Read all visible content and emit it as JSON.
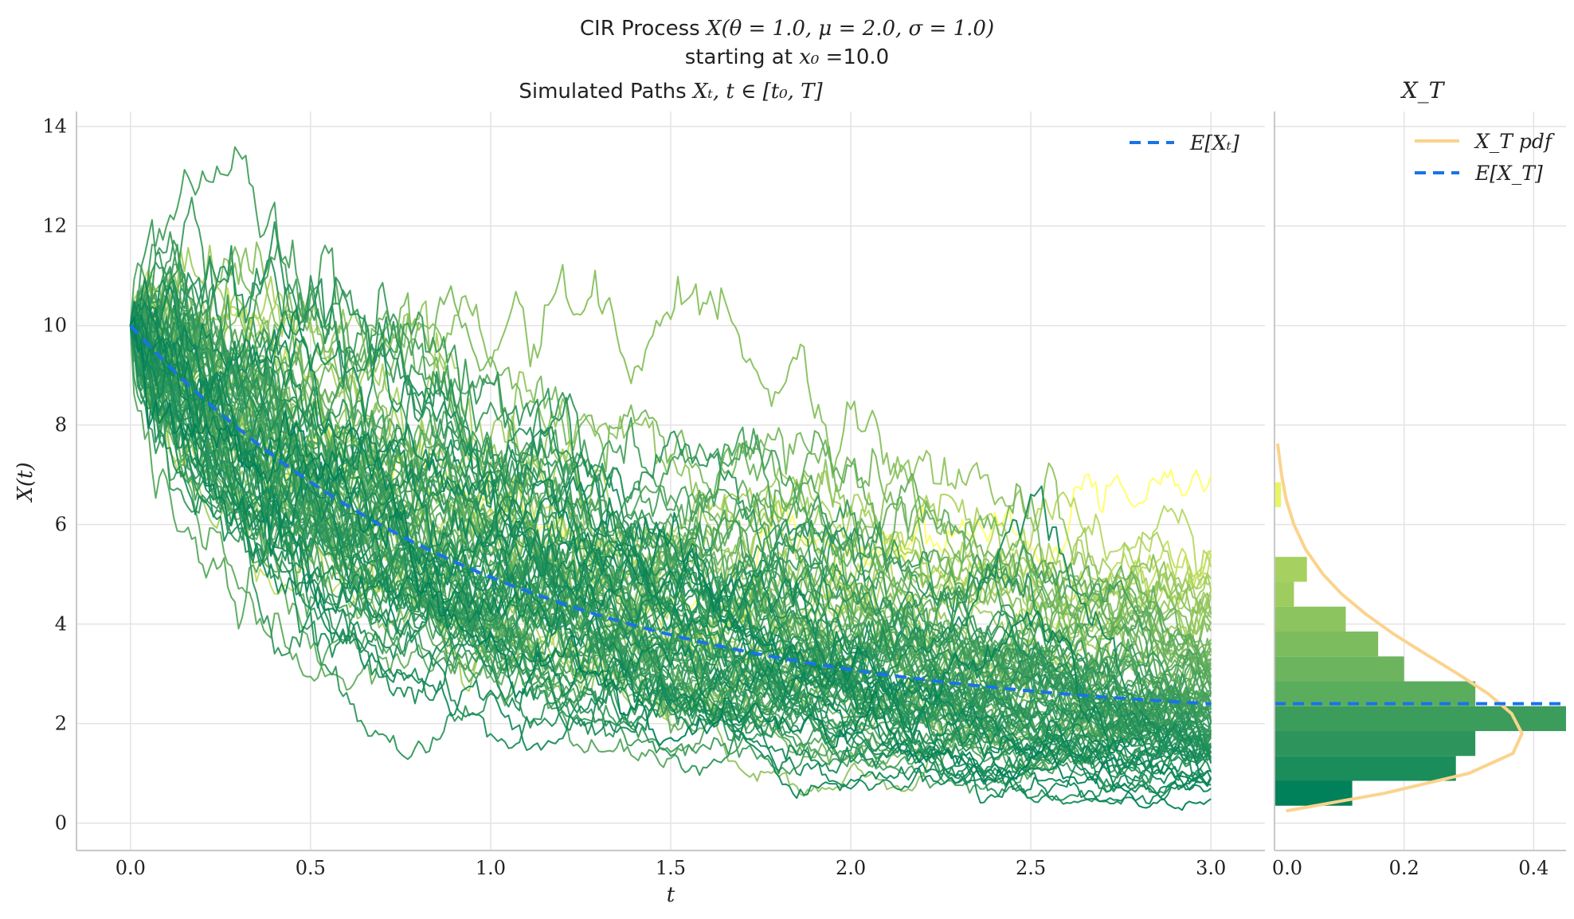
{
  "title": {
    "line1_prefix": "CIR Process ",
    "line1_math": "X(θ = 1.0, μ = 2.0, σ = 1.0)",
    "line2_prefix": "starting at ",
    "line2_math": "x₀ =",
    "line2_value": "10.0"
  },
  "chart_data": [
    {
      "type": "line",
      "panel": "paths",
      "title_prefix": "Simulated Paths ",
      "title_math": "Xₜ, t ∈ [t₀, T]",
      "xlabel": "t",
      "ylabel": "X(t)",
      "xlim": [
        -0.15,
        3.15
      ],
      "ylim": [
        -0.55,
        14.3
      ],
      "xticks": [
        0.0,
        0.5,
        1.0,
        1.5,
        2.0,
        2.5,
        3.0
      ],
      "xtick_labels": [
        "0.0",
        "0.5",
        "1.0",
        "1.5",
        "2.0",
        "2.5",
        "3.0"
      ],
      "yticks": [
        0,
        2,
        4,
        6,
        8,
        10,
        12,
        14
      ],
      "ytick_labels": [
        "0",
        "2",
        "4",
        "6",
        "8",
        "10",
        "12",
        "14"
      ],
      "grid": true,
      "legend_position": "upper right",
      "legend_label": "E[Xₜ]",
      "parameters": {
        "theta": 1.0,
        "mu": 2.0,
        "sigma": 1.0,
        "x0": 10.0,
        "T": 3.0
      },
      "n_paths": 100,
      "expectation": {
        "name": "E[Xₜ]",
        "color": "#1a73e8",
        "x": [
          0,
          0.25,
          0.5,
          0.75,
          1.0,
          1.25,
          1.5,
          1.75,
          2.0,
          2.25,
          2.5,
          2.75,
          3.0
        ],
        "y": [
          10.0,
          8.23,
          6.85,
          5.78,
          4.94,
          4.29,
          3.79,
          3.39,
          3.08,
          2.84,
          2.66,
          2.51,
          2.4
        ]
      },
      "paths_colormap": [
        "#00815a",
        "#3c9c5c",
        "#7cbb5e",
        "#c0dd60",
        "#ffff66"
      ]
    },
    {
      "type": "bar",
      "panel": "histogram",
      "orientation": "horizontal",
      "title": "X_T",
      "xlim": [
        0,
        0.45
      ],
      "xticks": [
        0.0,
        0.2,
        0.4
      ],
      "xtick_labels": [
        "0.0",
        "0.2",
        "0.4"
      ],
      "bin_edges": [
        0.35,
        0.85,
        1.35,
        1.85,
        2.35,
        2.85,
        3.35,
        3.85,
        4.35,
        4.85,
        5.35,
        5.85,
        6.35,
        6.85,
        7.35
      ],
      "density": [
        0.12,
        0.28,
        0.31,
        0.45,
        0.31,
        0.2,
        0.16,
        0.11,
        0.03,
        0.05,
        0.0,
        0.0,
        0.01,
        0.0
      ],
      "bar_colors": [
        "#00815a",
        "#1a8d5b",
        "#2d955b",
        "#3c9c5c",
        "#5aad5d",
        "#6cb55e",
        "#7cbb5e",
        "#8cc45f",
        "#9dcc5f",
        "#a6d05f",
        "#b8d860",
        "#c9e260",
        "#e8f563",
        "#ffff66"
      ],
      "legend_position": "upper right",
      "pdf": {
        "name": "X_T pdf",
        "color": "#fbd38d",
        "y": [
          0.25,
          0.6,
          1.0,
          1.4,
          1.8,
          2.2,
          2.6,
          3.0,
          3.4,
          3.8,
          4.2,
          4.6,
          5.0,
          5.5,
          6.0,
          6.5,
          7.0,
          7.6
        ],
        "density": [
          0.02,
          0.17,
          0.3,
          0.368,
          0.382,
          0.366,
          0.33,
          0.283,
          0.233,
          0.184,
          0.141,
          0.104,
          0.075,
          0.048,
          0.03,
          0.018,
          0.011,
          0.005
        ]
      },
      "expectation": {
        "name": "E[X_T]",
        "color": "#1a73e8",
        "value": 2.4
      }
    }
  ]
}
